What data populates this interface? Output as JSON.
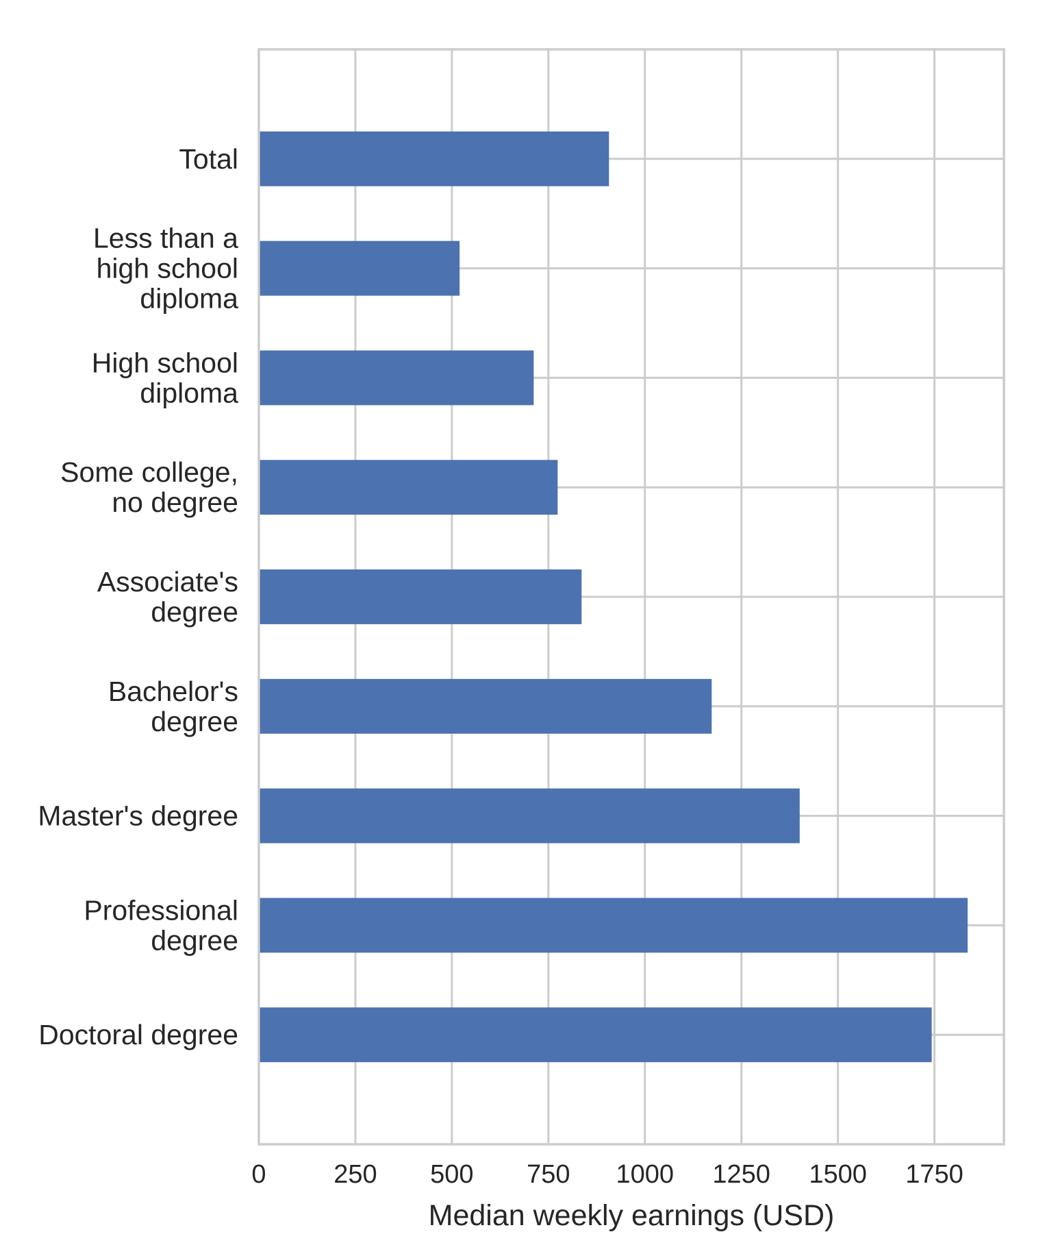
{
  "chart_data": {
    "type": "bar",
    "orientation": "horizontal",
    "categories": [
      "Total",
      "Less than a high school diploma",
      "High school diploma",
      "Some college, no degree",
      "Associate's degree",
      "Bachelor's degree",
      "Master's degree",
      "Professional degree",
      "Doctoral degree"
    ],
    "category_label_lines": [
      [
        "Total"
      ],
      [
        "Less than a",
        "high school",
        "diploma"
      ],
      [
        "High school",
        "diploma"
      ],
      [
        "Some college,",
        "no degree"
      ],
      [
        "Associate's",
        "degree"
      ],
      [
        "Bachelor's",
        "degree"
      ],
      [
        "Master's degree"
      ],
      [
        "Professional",
        "degree"
      ],
      [
        "Doctoral degree"
      ]
    ],
    "values": [
      907,
      520,
      712,
      774,
      836,
      1173,
      1401,
      1836,
      1743
    ],
    "xlabel": "Median weekly earnings (USD)",
    "ylabel": "",
    "title": "",
    "xlim": [
      0,
      1930
    ],
    "xticks": [
      0,
      250,
      500,
      750,
      1000,
      1250,
      1500,
      1750
    ],
    "xtick_labels": [
      "0",
      "250",
      "500",
      "750",
      "1000",
      "1250",
      "1500",
      "1750"
    ],
    "grid": true,
    "bar_color": "#4c72b0",
    "grid_color": "#cccccc",
    "text_color": "#262626"
  }
}
